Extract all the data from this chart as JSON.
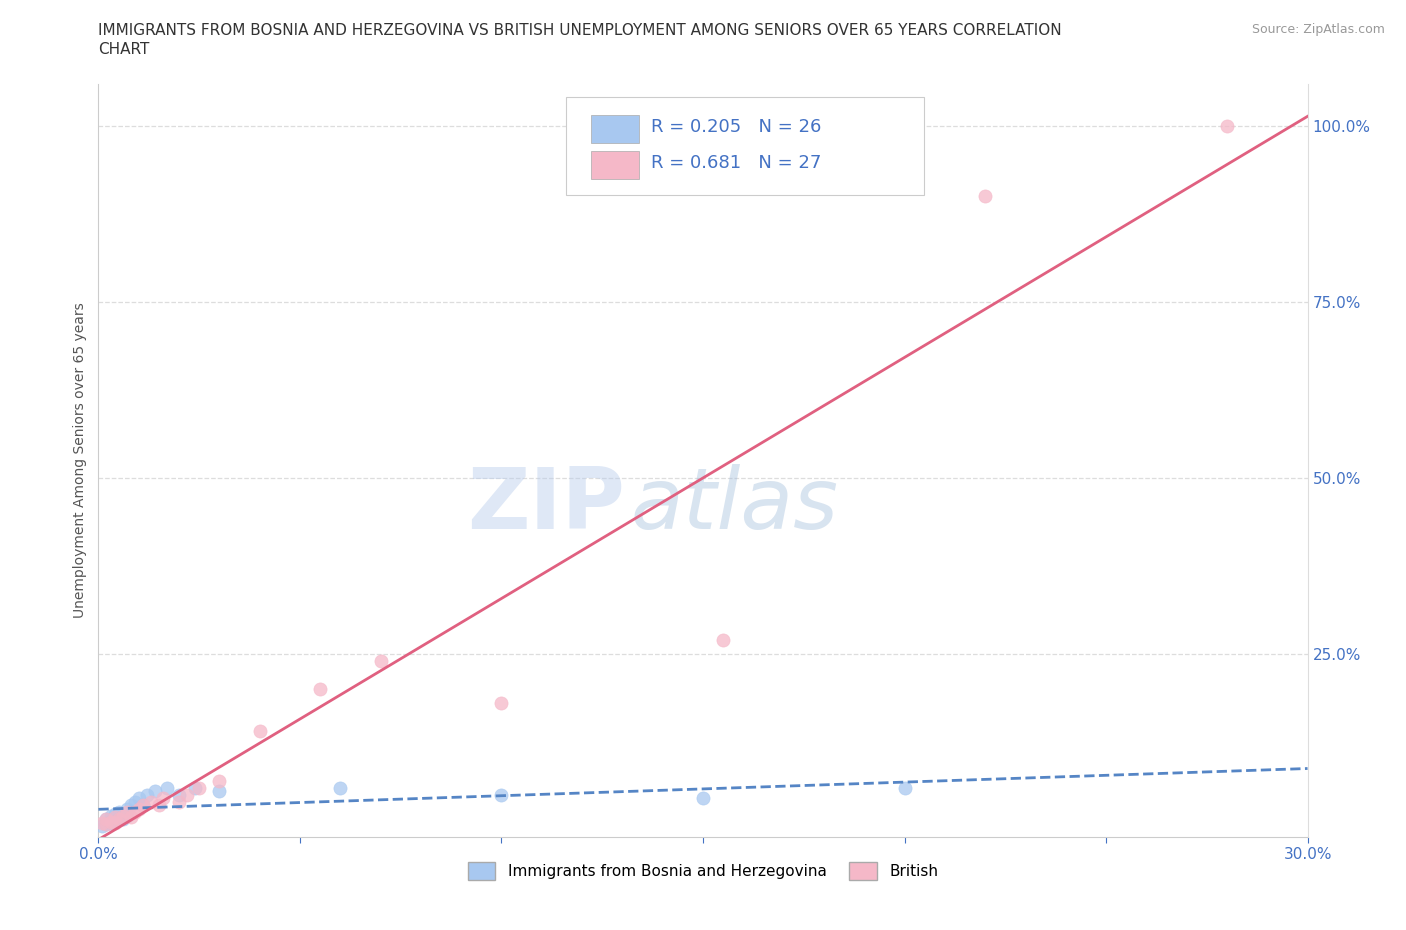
{
  "title_line1": "IMMIGRANTS FROM BOSNIA AND HERZEGOVINA VS BRITISH UNEMPLOYMENT AMONG SENIORS OVER 65 YEARS CORRELATION",
  "title_line2": "CHART",
  "source": "Source: ZipAtlas.com",
  "ylabel": "Unemployment Among Seniors over 65 years",
  "xlim": [
    0.0,
    0.3
  ],
  "ylim": [
    -0.01,
    1.06
  ],
  "xticks": [
    0.0,
    0.05,
    0.1,
    0.15,
    0.2,
    0.25,
    0.3
  ],
  "xtick_labels": [
    "0.0%",
    "",
    "",
    "",
    "",
    "",
    "30.0%"
  ],
  "yticks_right": [
    0.25,
    0.5,
    0.75,
    1.0
  ],
  "ytick_labels_right": [
    "25.0%",
    "50.0%",
    "75.0%",
    "100.0%"
  ],
  "background_color": "#ffffff",
  "watermark_zip": "ZIP",
  "watermark_atlas": "atlas",
  "bosnia_color": "#a8c8f0",
  "british_color": "#f5b8c8",
  "bosnia_line_color": "#5585c5",
  "british_line_color": "#e06080",
  "R_bosnia": 0.205,
  "N_bosnia": 26,
  "R_british": 0.681,
  "N_british": 27,
  "bosnia_x": [
    0.001,
    0.002,
    0.002,
    0.003,
    0.003,
    0.004,
    0.004,
    0.005,
    0.005,
    0.006,
    0.007,
    0.007,
    0.008,
    0.009,
    0.01,
    0.011,
    0.012,
    0.014,
    0.017,
    0.02,
    0.024,
    0.03,
    0.06,
    0.1,
    0.15,
    0.2
  ],
  "bosnia_y": [
    0.005,
    0.008,
    0.015,
    0.01,
    0.02,
    0.012,
    0.022,
    0.018,
    0.025,
    0.015,
    0.02,
    0.03,
    0.035,
    0.04,
    0.045,
    0.035,
    0.05,
    0.055,
    0.06,
    0.05,
    0.06,
    0.055,
    0.06,
    0.05,
    0.045,
    0.06
  ],
  "british_x": [
    0.001,
    0.002,
    0.002,
    0.003,
    0.004,
    0.004,
    0.005,
    0.006,
    0.007,
    0.008,
    0.009,
    0.01,
    0.011,
    0.013,
    0.015,
    0.016,
    0.02,
    0.022,
    0.025,
    0.03,
    0.04,
    0.055,
    0.07,
    0.1,
    0.155,
    0.22,
    0.28
  ],
  "british_y": [
    0.01,
    0.008,
    0.015,
    0.012,
    0.01,
    0.018,
    0.015,
    0.02,
    0.025,
    0.018,
    0.025,
    0.03,
    0.035,
    0.04,
    0.035,
    0.045,
    0.04,
    0.05,
    0.06,
    0.07,
    0.14,
    0.2,
    0.24,
    0.18,
    0.27,
    0.9,
    1.0
  ],
  "title_fontsize": 11,
  "label_fontsize": 10,
  "tick_fontsize": 11,
  "legend_fontsize": 13
}
